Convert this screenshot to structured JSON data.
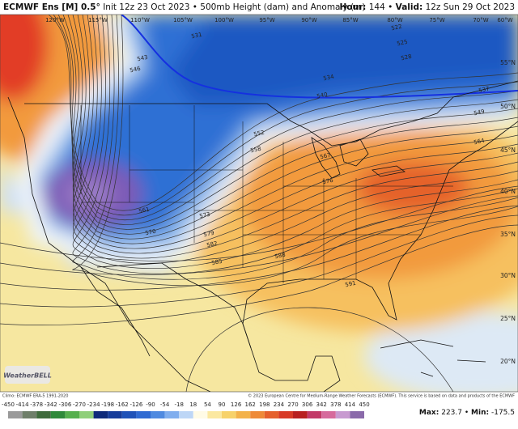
{
  "header": {
    "title": "ECMWF Ens [M] 0.5°",
    "subtitle": "Init 12z 23 Oct 2023 • 500mb Height (dam) and Anomaly (m)",
    "hour_label": "Hour:",
    "hour": "144",
    "separator": "•",
    "valid_label": "Valid:",
    "valid": "12z Sun 29 Oct 2023"
  },
  "map": {
    "longitudes": [
      "120°W",
      "115°W",
      "110°W",
      "105°W",
      "100°W",
      "95°W",
      "90°W",
      "85°W",
      "80°W",
      "75°W",
      "70°W",
      "60°W"
    ],
    "latitudes": [
      "55°N",
      "50°N",
      "45°N",
      "40°N",
      "35°N",
      "30°N",
      "25°N",
      "20°N"
    ],
    "contour_labels": [
      522,
      525,
      528,
      531,
      534,
      537,
      540,
      543,
      546,
      549,
      552,
      558,
      561,
      564,
      567,
      570,
      573,
      576,
      579,
      582,
      585,
      588,
      591
    ],
    "logo": "WeatherBELL"
  },
  "footer": {
    "climo": "Climo: ECMWF ERA-5 1991-2020",
    "copyright": "© 2023 European Centre for Medium-Range Weather Forecasts (ECMWF). This service is based on data and products of the ECMWF"
  },
  "colorbar": {
    "ticks": [
      -450,
      -414,
      -378,
      -342,
      -306,
      -270,
      -234,
      -198,
      -162,
      -126,
      -90,
      -54,
      -18,
      18,
      54,
      90,
      126,
      162,
      198,
      234,
      270,
      306,
      342,
      378,
      414,
      450
    ]
  },
  "stats": {
    "max_label": "Max:",
    "max": 223.7,
    "separator": "•",
    "min_label": "Min:",
    "min": -175.5
  }
}
